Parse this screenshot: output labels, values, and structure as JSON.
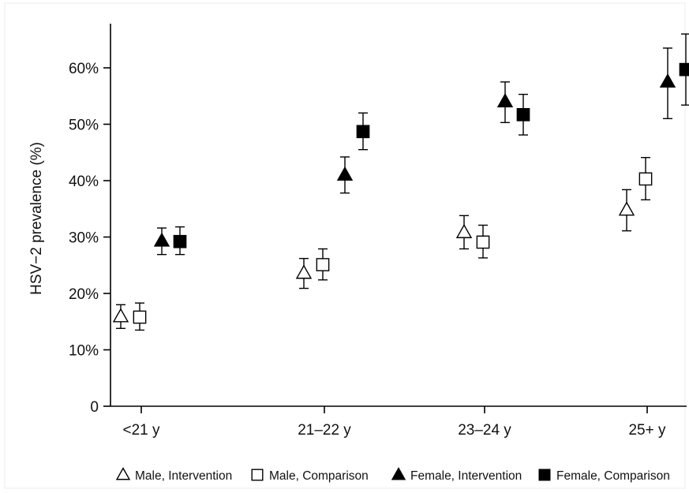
{
  "chart_data": {
    "type": "scatter",
    "ylabel": "HSV−2 prevalence (%)",
    "xlabel": "",
    "ylim": [
      0,
      65
    ],
    "yticks": [
      0,
      10,
      20,
      30,
      40,
      50,
      60
    ],
    "ytick_labels": [
      "0",
      "10%",
      "20%",
      "30%",
      "40%",
      "50%",
      "60%"
    ],
    "categories": [
      "<21 y",
      "21–22 y",
      "23–24 y",
      "25+ y"
    ],
    "grid": false,
    "legend_position": "bottom",
    "series": [
      {
        "name": "Male, Intervention",
        "marker": "triangle-open",
        "values": [
          15.9,
          23.6,
          30.8,
          34.8
        ],
        "lower": [
          13.8,
          20.9,
          27.9,
          31.1
        ],
        "upper": [
          18.0,
          26.2,
          33.8,
          38.4
        ]
      },
      {
        "name": "Male, Comparison",
        "marker": "square-open",
        "values": [
          15.8,
          25.1,
          29.1,
          40.3
        ],
        "lower": [
          13.5,
          22.4,
          26.3,
          36.6
        ],
        "upper": [
          18.3,
          27.9,
          32.1,
          44.1
        ]
      },
      {
        "name": "Female, Intervention",
        "marker": "triangle-filled",
        "values": [
          29.3,
          41.0,
          54.0,
          57.5
        ],
        "lower": [
          26.9,
          37.8,
          50.3,
          51.0
        ],
        "upper": [
          31.6,
          44.2,
          57.5,
          63.5
        ]
      },
      {
        "name": "Female, Comparison",
        "marker": "square-filled",
        "values": [
          29.2,
          48.7,
          51.7,
          59.7
        ],
        "lower": [
          26.9,
          45.5,
          48.1,
          53.4
        ],
        "upper": [
          31.8,
          52.0,
          55.3,
          66.0
        ]
      }
    ]
  }
}
